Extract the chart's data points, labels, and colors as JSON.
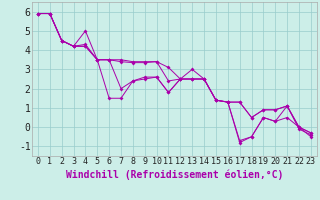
{
  "xlabel": "Windchill (Refroidissement éolien,°C)",
  "background_color": "#cceee8",
  "line_color": "#aa00aa",
  "grid_color": "#99cccc",
  "xlim": [
    -0.5,
    23.5
  ],
  "ylim": [
    -1.5,
    6.5
  ],
  "xticks": [
    0,
    1,
    2,
    3,
    4,
    5,
    6,
    7,
    8,
    9,
    10,
    11,
    12,
    13,
    14,
    15,
    16,
    17,
    18,
    19,
    20,
    21,
    22,
    23
  ],
  "yticks": [
    -1,
    0,
    1,
    2,
    3,
    4,
    5,
    6
  ],
  "series": [
    [
      5.9,
      5.9,
      4.5,
      4.2,
      4.3,
      3.5,
      3.5,
      2.0,
      2.4,
      2.6,
      2.6,
      1.8,
      2.5,
      3.0,
      2.5,
      1.4,
      1.3,
      -0.7,
      -0.5,
      0.5,
      0.3,
      1.1,
      -0.1,
      -0.4
    ],
    [
      5.9,
      5.9,
      4.5,
      4.2,
      5.0,
      3.5,
      3.5,
      3.4,
      3.35,
      3.35,
      3.4,
      2.4,
      2.5,
      2.5,
      2.5,
      1.4,
      1.3,
      1.3,
      0.5,
      0.9,
      0.9,
      1.1,
      0.0,
      -0.3
    ],
    [
      5.9,
      5.9,
      4.5,
      4.2,
      4.2,
      3.5,
      3.5,
      3.5,
      3.4,
      3.4,
      3.4,
      3.1,
      2.5,
      2.5,
      2.5,
      1.4,
      1.3,
      1.3,
      0.5,
      0.9,
      0.9,
      1.1,
      0.0,
      -0.3
    ],
    [
      5.9,
      5.9,
      4.5,
      4.2,
      4.2,
      3.5,
      1.5,
      1.5,
      2.4,
      2.5,
      2.6,
      1.8,
      2.5,
      2.5,
      2.5,
      1.4,
      1.3,
      -0.8,
      -0.5,
      0.5,
      0.3,
      0.5,
      0.0,
      -0.5
    ]
  ],
  "xlabel_color": "#aa00aa",
  "xlabel_fontsize": 7,
  "tick_fontsize": 6,
  "ytick_fontsize": 7
}
